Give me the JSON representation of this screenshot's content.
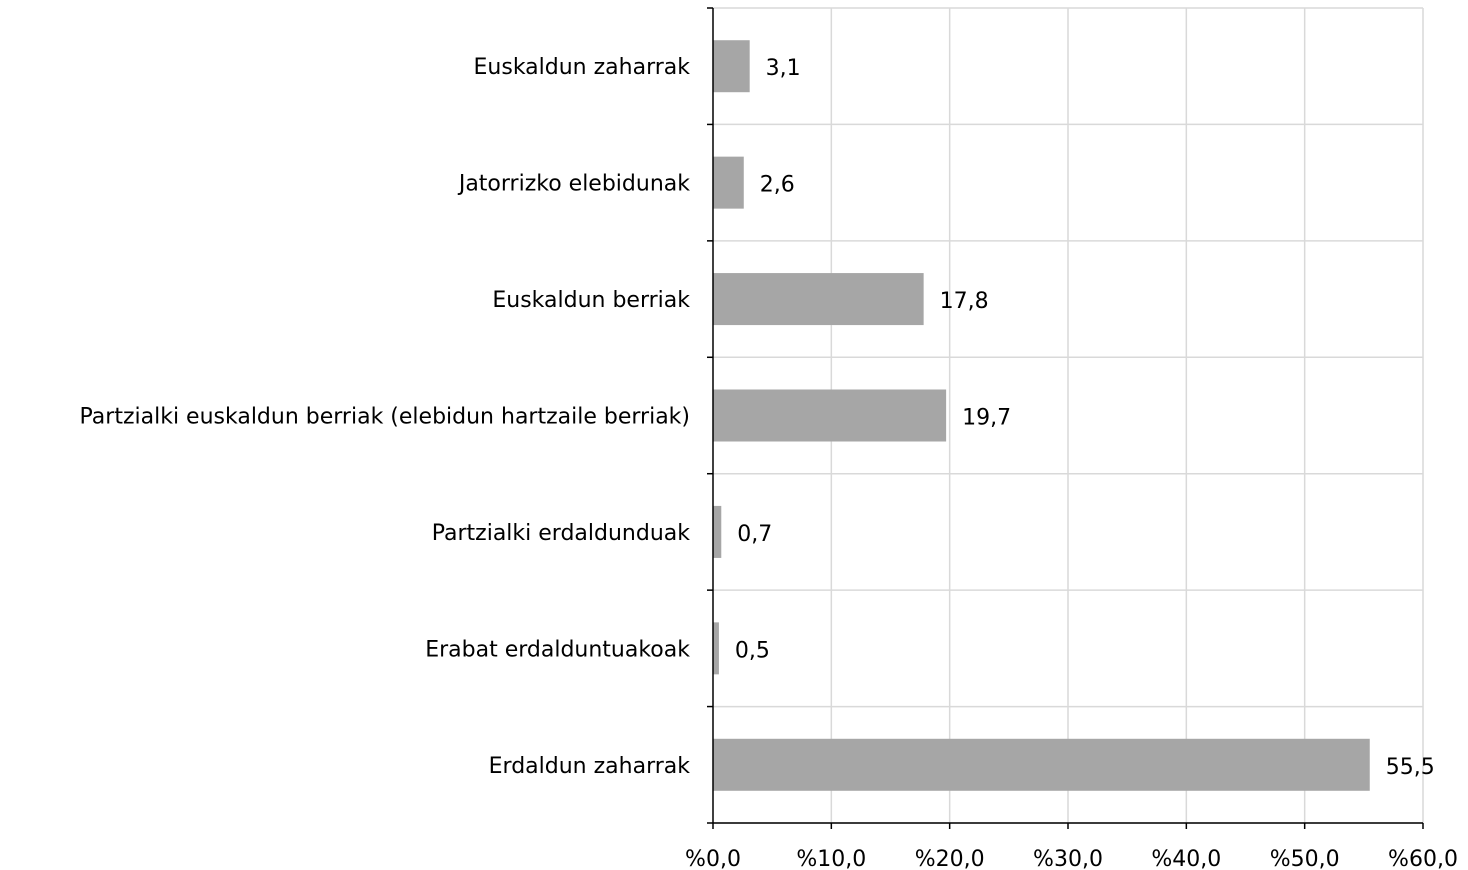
{
  "chart_data": {
    "type": "bar",
    "orientation": "horizontal",
    "categories": [
      "Euskaldun zaharrak",
      "Jatorrizko elebidunak",
      "Euskaldun berriak",
      "Partzialki euskaldun berriak (elebidun hartzaile berriak)",
      "Partzialki erdaldunduak",
      "Erabat erdalduntuakoak",
      "Erdaldun zaharrak"
    ],
    "values": [
      3.1,
      2.6,
      17.8,
      19.7,
      0.7,
      0.5,
      55.5
    ],
    "value_labels": [
      "3,1",
      "2,6",
      "17,8",
      "19,7",
      "0,7",
      "0,5",
      "55,5"
    ],
    "xlim": [
      0,
      60
    ],
    "xticks": [
      0,
      10,
      20,
      30,
      40,
      50,
      60
    ],
    "xtick_labels": [
      "%0,0",
      "%10,0",
      "%20,0",
      "%30,0",
      "%40,0",
      "%50,0",
      "%60,0"
    ],
    "title": "",
    "xlabel": "",
    "ylabel": "",
    "grid": true,
    "legend": false,
    "bar_color": "#a6a6a6",
    "grid_color": "#d9d9d9",
    "axis_color": "#000000"
  }
}
